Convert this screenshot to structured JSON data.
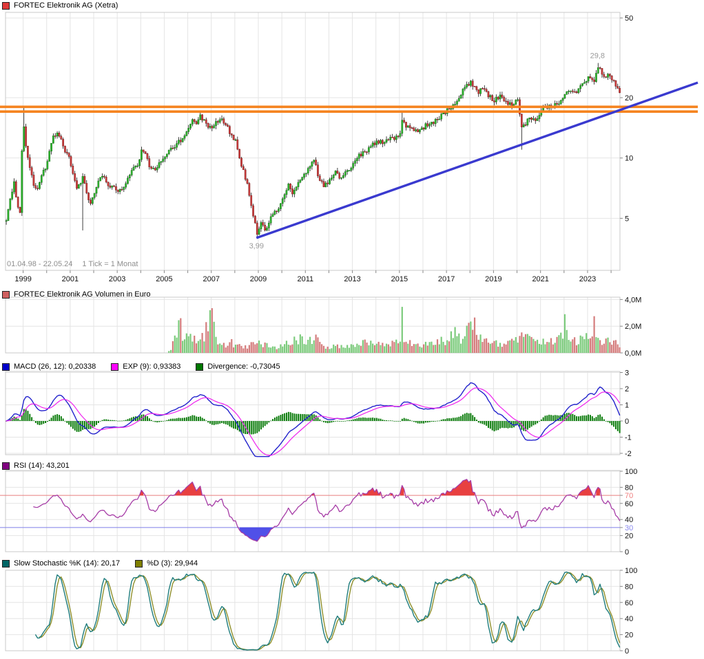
{
  "colors": {
    "up": "#2db52d",
    "up_border": "#157015",
    "down": "#cc3b3b",
    "down_border": "#7c1d1d",
    "wick": "#111111",
    "volume_up": "#7ccb7c",
    "volume_down": "#d47c7c",
    "macd_line": "#2222cc",
    "signal_line": "#ee22ee",
    "histogram": "#007700",
    "rsi_line": "#a63ca6",
    "rsi_over_fill": "#e84040",
    "rsi_under_fill": "#5050e8",
    "rsi_over_line": "#e87e7e",
    "rsi_under_line": "#7e7ee8",
    "stoch_k": "#1e7c7c",
    "stoch_d": "#8f8f2a",
    "trendline": "#3a3acf",
    "resistance": "#f5831f",
    "grid": "#e4e4e4",
    "border": "#c9c9c9",
    "tick": "#888888",
    "label": "#111111",
    "label_grey": "#999999"
  },
  "legends": {
    "price": {
      "label": "FORTEC Elektronik AG (Xetra)",
      "swatch": "#e03a3a"
    },
    "volume": {
      "label": "FORTEC Elektronik AG Volumen in Euro",
      "swatch": "#d06060"
    },
    "macd": [
      {
        "label": "MACD (26, 12): 0,20338",
        "swatch": "#0000cc"
      },
      {
        "label": "EXP (9): 0,93383",
        "swatch": "#ff00ff"
      },
      {
        "label": "Divergence: -0,73045",
        "swatch": "#007700"
      }
    ],
    "rsi": {
      "label": "RSI (14): 43,201",
      "swatch": "#800080"
    },
    "stoch": [
      {
        "label": "Slow Stochastic %K (14): 20,17",
        "swatch": "#006666"
      },
      {
        "label": "%D (3): 29,944",
        "swatch": "#808000"
      }
    ]
  },
  "chart_data": {
    "type": "multi-panel-stock-chart",
    "instrument": "FORTEC Elektronik AG (Xetra)",
    "period": "01.04.98 - 22.05.24",
    "tick_note": "1 Tick = 1 Monat",
    "x_axis": {
      "start_year": 1998.25,
      "end_year": 2024.42,
      "year_labels": [
        "1999",
        "2001",
        "2003",
        "2005",
        "2007",
        "2009",
        "2011",
        "2013",
        "2015",
        "2017",
        "2019",
        "2021",
        "2023"
      ]
    },
    "price_panel": {
      "type": "candlestick",
      "scale": "log",
      "ylim": [
        3.5,
        55
      ],
      "ticks": [
        {
          "v": 50,
          "l": "50"
        },
        {
          "v": 20,
          "l": "20"
        },
        {
          "v": 10,
          "l": "10"
        },
        {
          "v": 5,
          "l": "5"
        }
      ],
      "resistance_prices": [
        18.0,
        17.05
      ],
      "trendline": {
        "from": {
          "year": 2008.92,
          "price": 3.99
        },
        "to": {
          "year": 2024.4,
          "price": 17.4
        },
        "extend_to_x": 1013
      },
      "annotations": [
        {
          "text": "29,8",
          "year": 2023.42,
          "price": 29.8,
          "pos": "above"
        },
        {
          "text": "3,99",
          "year": 2008.92,
          "price": 3.99,
          "pos": "below"
        }
      ],
      "close_anchors": [
        [
          1998.25,
          5.0
        ],
        [
          1998.42,
          6.2
        ],
        [
          1998.58,
          7.6
        ],
        [
          1998.71,
          6.0
        ],
        [
          1998.83,
          5.1
        ],
        [
          1998.96,
          16.2
        ],
        [
          1999.08,
          11.5
        ],
        [
          1999.25,
          9.0
        ],
        [
          1999.42,
          7.2
        ],
        [
          1999.58,
          7.0
        ],
        [
          1999.75,
          8.2
        ],
        [
          1999.92,
          8.8
        ],
        [
          2000.08,
          10.5
        ],
        [
          2000.25,
          12.8
        ],
        [
          2000.42,
          13.4
        ],
        [
          2000.58,
          12.2
        ],
        [
          2000.75,
          11.0
        ],
        [
          2000.92,
          10.2
        ],
        [
          2001.08,
          8.6
        ],
        [
          2001.25,
          7.2
        ],
        [
          2001.5,
          7.9
        ],
        [
          2001.67,
          6.8
        ],
        [
          2001.83,
          5.9
        ],
        [
          2002.0,
          6.6
        ],
        [
          2002.17,
          7.8
        ],
        [
          2002.33,
          8.3
        ],
        [
          2002.5,
          7.4
        ],
        [
          2002.67,
          7.0
        ],
        [
          2002.83,
          7.3
        ],
        [
          2003.0,
          6.7
        ],
        [
          2003.17,
          7.0
        ],
        [
          2003.33,
          7.6
        ],
        [
          2003.58,
          8.5
        ],
        [
          2003.83,
          9.3
        ],
        [
          2004.0,
          10.9
        ],
        [
          2004.17,
          10.4
        ],
        [
          2004.33,
          9.1
        ],
        [
          2004.5,
          8.7
        ],
        [
          2004.75,
          9.3
        ],
        [
          2005.0,
          10.1
        ],
        [
          2005.25,
          11.2
        ],
        [
          2005.5,
          11.7
        ],
        [
          2005.75,
          12.7
        ],
        [
          2006.0,
          14.2
        ],
        [
          2006.17,
          15.7
        ],
        [
          2006.33,
          15.1
        ],
        [
          2006.5,
          16.1
        ],
        [
          2006.67,
          15.4
        ],
        [
          2006.83,
          14.6
        ],
        [
          2007.0,
          14.1
        ],
        [
          2007.17,
          14.9
        ],
        [
          2007.33,
          15.7
        ],
        [
          2007.5,
          15.1
        ],
        [
          2007.75,
          13.5
        ],
        [
          2008.0,
          12.1
        ],
        [
          2008.25,
          9.1
        ],
        [
          2008.5,
          7.5
        ],
        [
          2008.75,
          5.1
        ],
        [
          2008.92,
          4.2
        ],
        [
          2009.08,
          4.8
        ],
        [
          2009.25,
          4.4
        ],
        [
          2009.5,
          5.0
        ],
        [
          2009.75,
          5.5
        ],
        [
          2010.0,
          6.1
        ],
        [
          2010.25,
          7.3
        ],
        [
          2010.42,
          6.7
        ],
        [
          2010.58,
          7.3
        ],
        [
          2010.75,
          7.8
        ],
        [
          2011.0,
          8.5
        ],
        [
          2011.17,
          9.2
        ],
        [
          2011.33,
          9.8
        ],
        [
          2011.5,
          8.3
        ],
        [
          2011.75,
          7.1
        ],
        [
          2012.0,
          7.8
        ],
        [
          2012.25,
          8.5
        ],
        [
          2012.5,
          7.8
        ],
        [
          2012.75,
          8.6
        ],
        [
          2013.0,
          9.3
        ],
        [
          2013.25,
          10.3
        ],
        [
          2013.5,
          10.8
        ],
        [
          2013.75,
          11.3
        ],
        [
          2014.0,
          12.3
        ],
        [
          2014.25,
          11.8
        ],
        [
          2014.5,
          12.6
        ],
        [
          2014.75,
          12.3
        ],
        [
          2015.0,
          13.5
        ],
        [
          2015.08,
          15.8
        ],
        [
          2015.25,
          14.6
        ],
        [
          2015.5,
          14.1
        ],
        [
          2015.75,
          13.8
        ],
        [
          2016.0,
          14.3
        ],
        [
          2016.25,
          14.8
        ],
        [
          2016.5,
          15.3
        ],
        [
          2016.75,
          16.3
        ],
        [
          2017.0,
          17.3
        ],
        [
          2017.25,
          18.2
        ],
        [
          2017.5,
          20.2
        ],
        [
          2017.75,
          22.8
        ],
        [
          2018.0,
          24.0
        ],
        [
          2018.17,
          22.2
        ],
        [
          2018.33,
          21.2
        ],
        [
          2018.5,
          22.6
        ],
        [
          2018.75,
          20.4
        ],
        [
          2019.0,
          19.3
        ],
        [
          2019.25,
          20.4
        ],
        [
          2019.5,
          19.1
        ],
        [
          2019.75,
          18.3
        ],
        [
          2020.0,
          19.4
        ],
        [
          2020.17,
          14.2
        ],
        [
          2020.33,
          14.8
        ],
        [
          2020.5,
          16.1
        ],
        [
          2020.75,
          15.3
        ],
        [
          2021.0,
          17.4
        ],
        [
          2021.25,
          17.9
        ],
        [
          2021.5,
          18.2
        ],
        [
          2021.75,
          18.9
        ],
        [
          2022.0,
          21.0
        ],
        [
          2022.25,
          22.1
        ],
        [
          2022.5,
          21.2
        ],
        [
          2022.75,
          23.4
        ],
        [
          2023.0,
          25.0
        ],
        [
          2023.25,
          24.0
        ],
        [
          2023.42,
          28.6
        ],
        [
          2023.58,
          26.3
        ],
        [
          2023.75,
          25.8
        ],
        [
          2024.0,
          25.0
        ],
        [
          2024.17,
          23.3
        ],
        [
          2024.33,
          20.8
        ]
      ],
      "wick_events": [
        {
          "year": 1998.96,
          "high": 18.2
        },
        {
          "year": 2001.5,
          "low": 4.35
        },
        {
          "year": 2008.92,
          "low": 3.99
        },
        {
          "year": 2015.08,
          "high": 16.9
        },
        {
          "year": 2020.17,
          "low": 11.0
        },
        {
          "year": 2023.42,
          "high": 29.8
        }
      ]
    },
    "volume_panel": {
      "type": "bar",
      "unit": "EUR",
      "ylim": [
        0,
        4.3
      ],
      "ticks": [
        {
          "v": 4,
          "l": "4,0M"
        },
        {
          "v": 2,
          "l": "2,0M"
        },
        {
          "v": 0,
          "l": "0,0M"
        }
      ],
      "start_year": 2005.15,
      "anchors": [
        [
          2005.2,
          0.15
        ],
        [
          2005.5,
          1.6
        ],
        [
          2005.75,
          1.0
        ],
        [
          2006.0,
          1.3
        ],
        [
          2006.33,
          0.8
        ],
        [
          2006.75,
          1.6
        ],
        [
          2007.0,
          2.2
        ],
        [
          2007.25,
          1.0
        ],
        [
          2007.58,
          0.7
        ],
        [
          2008.0,
          0.75
        ],
        [
          2008.5,
          0.5
        ],
        [
          2009.0,
          0.8
        ],
        [
          2009.5,
          0.45
        ],
        [
          2010.0,
          0.55
        ],
        [
          2010.5,
          1.1
        ],
        [
          2011.0,
          0.9
        ],
        [
          2011.33,
          1.2
        ],
        [
          2011.67,
          0.5
        ],
        [
          2012.0,
          0.4
        ],
        [
          2012.5,
          0.5
        ],
        [
          2013.0,
          0.55
        ],
        [
          2013.5,
          0.85
        ],
        [
          2014.0,
          0.65
        ],
        [
          2014.5,
          0.6
        ],
        [
          2015.0,
          1.1
        ],
        [
          2015.33,
          0.9
        ],
        [
          2015.67,
          0.7
        ],
        [
          2016.0,
          0.6
        ],
        [
          2016.5,
          0.75
        ],
        [
          2017.0,
          0.95
        ],
        [
          2017.33,
          1.4
        ],
        [
          2017.67,
          1.1
        ],
        [
          2018.0,
          1.8
        ],
        [
          2018.33,
          1.2
        ],
        [
          2018.67,
          0.9
        ],
        [
          2019.0,
          0.75
        ],
        [
          2019.5,
          0.65
        ],
        [
          2020.0,
          0.95
        ],
        [
          2020.33,
          1.2
        ],
        [
          2020.67,
          0.8
        ],
        [
          2021.0,
          0.85
        ],
        [
          2021.5,
          0.75
        ],
        [
          2022.0,
          1.3
        ],
        [
          2022.5,
          0.85
        ],
        [
          2023.0,
          1.1
        ],
        [
          2023.5,
          0.9
        ],
        [
          2024.0,
          0.85
        ],
        [
          2024.42,
          0.6
        ]
      ],
      "spikes": [
        {
          "year": 2005.58,
          "v": 2.45
        },
        {
          "year": 2005.67,
          "v": 2.6
        },
        {
          "year": 2006.92,
          "v": 3.2
        },
        {
          "year": 2007.0,
          "v": 3.35
        },
        {
          "year": 2015.08,
          "v": 3.45
        },
        {
          "year": 2018.17,
          "v": 2.65
        },
        {
          "year": 2022.0,
          "v": 2.9
        },
        {
          "year": 2023.25,
          "v": 2.75
        }
      ]
    },
    "macd_panel": {
      "type": "line+histogram",
      "fast": 12,
      "slow": 26,
      "signal": 9,
      "ticks": [
        {
          "v": 3,
          "l": "3"
        },
        {
          "v": 2,
          "l": "2"
        },
        {
          "v": 1,
          "l": "1"
        },
        {
          "v": 0,
          "l": "0"
        },
        {
          "v": -1,
          "l": "-1"
        },
        {
          "v": -2,
          "l": "-2"
        }
      ],
      "current": {
        "macd": 0.20338,
        "exp": 0.93383,
        "divergence": -0.73045
      }
    },
    "rsi_panel": {
      "type": "line",
      "period": 14,
      "overbought": 70,
      "oversold": 30,
      "current": 43.201,
      "ticks": [
        {
          "v": 100,
          "l": "100"
        },
        {
          "v": 80,
          "l": "80"
        },
        {
          "v": 70,
          "l": "70",
          "c": "#f08080"
        },
        {
          "v": 60,
          "l": "60"
        },
        {
          "v": 40,
          "l": "40"
        },
        {
          "v": 30,
          "l": "30",
          "c": "#8888ee"
        },
        {
          "v": 20,
          "l": "20"
        },
        {
          "v": 0,
          "l": "0"
        }
      ]
    },
    "stoch_panel": {
      "type": "line",
      "k_period": 14,
      "d_period": 3,
      "current_k": 20.17,
      "current_d": 29.944,
      "ticks": [
        {
          "v": 100,
          "l": "100"
        },
        {
          "v": 80,
          "l": "80"
        },
        {
          "v": 60,
          "l": "60"
        },
        {
          "v": 40,
          "l": "40"
        },
        {
          "v": 20,
          "l": "20"
        },
        {
          "v": 0,
          "l": "0"
        }
      ]
    }
  }
}
